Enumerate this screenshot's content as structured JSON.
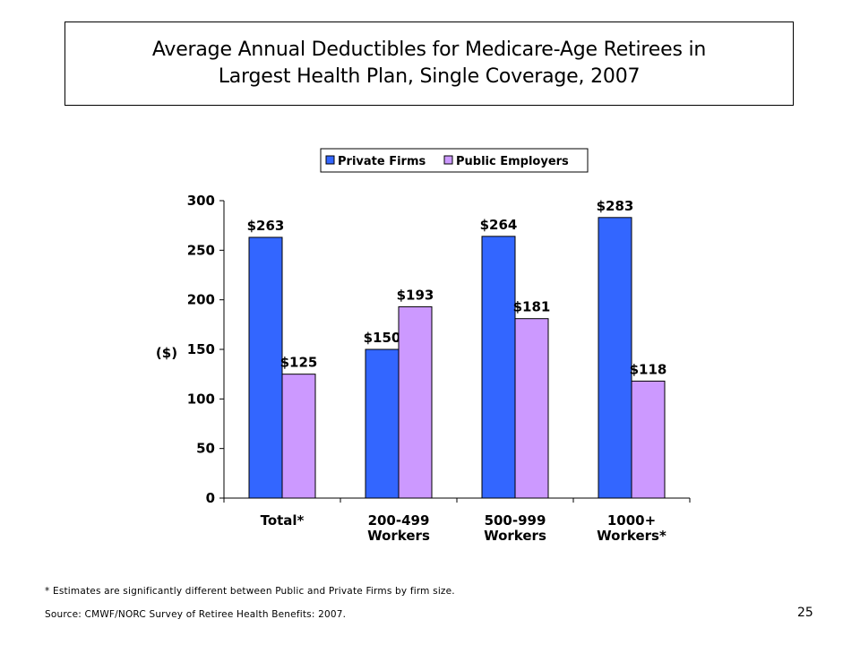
{
  "title_lines": [
    "Average Annual Deductibles for Medicare-Age Retirees in",
    "Largest Health Plan, Single Coverage, 2007"
  ],
  "chart_data": {
    "type": "bar",
    "title": "Average Annual Deductibles for Medicare-Age Retirees in Largest Health Plan, Single Coverage, 2007",
    "ylabel": "($)",
    "ylim": [
      0,
      300
    ],
    "yticks": [
      "0",
      "50",
      "100",
      "150",
      "200",
      "250",
      "300"
    ],
    "ytick_values": [
      0,
      50,
      100,
      150,
      200,
      250,
      300
    ],
    "categories": [
      [
        "Total*"
      ],
      [
        "200-499",
        "Workers"
      ],
      [
        "500-999",
        "Workers"
      ],
      [
        "1000+",
        "Workers*"
      ]
    ],
    "series": [
      {
        "name": "Private Firms",
        "color": "#3366ff",
        "values": [
          263,
          150,
          264,
          283
        ],
        "labels": [
          "$263",
          "$150",
          "$264",
          "$283"
        ]
      },
      {
        "name": "Public Employers",
        "color": "#cc99ff",
        "values": [
          125,
          193,
          181,
          118
        ],
        "labels": [
          "$125",
          "$193",
          "$181",
          "$118"
        ]
      }
    ],
    "legend_position": "top-center",
    "grid": false
  },
  "footnote": "* Estimates are significantly different between Public and Private Firms by firm size.",
  "source": "Source: CMWF/NORC Survey of Retiree Health Benefits: 2007.",
  "page_number": "25"
}
